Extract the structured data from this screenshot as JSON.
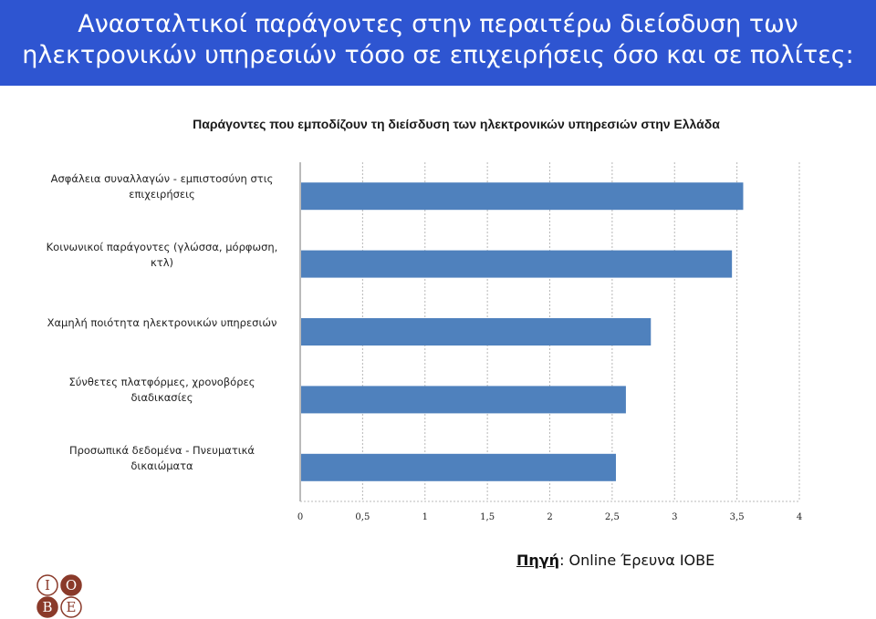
{
  "header": {
    "line1": "Ανασταλτικοί παράγοντες στην περαιτέρω διείσδυση των",
    "line2": "ηλεκτρονικών υπηρεσιών τόσο σε επιχειρήσεις όσο και σε πολίτες:"
  },
  "chart_data": {
    "type": "bar",
    "orientation": "horizontal",
    "title": "Παράγοντες που εμποδίζουν τη διείσδυση των ηλεκτρονικών υπηρεσιών στην Ελλάδα",
    "categories": [
      [
        "Ασφάλεια συναλλαγών - εμπιστοσύνη στις",
        "επιχειρήσεις"
      ],
      [
        "Κοινωνικοί παράγοντες (γλώσσα, μόρφωση,",
        "κτλ)"
      ],
      [
        "Χαμηλή ποιότητα ηλεκτρονικών υπηρεσιών"
      ],
      [
        "Σύνθετες πλατφόρμες, χρονοβόρες",
        "διαδικασίες"
      ],
      [
        "Προσωπικά δεδομένα - Πνευματικά",
        "δικαιώματα"
      ]
    ],
    "values": [
      3.55,
      3.46,
      2.81,
      2.61,
      2.53
    ],
    "xlim": [
      0,
      4
    ],
    "xticks": [
      "0",
      "0,5",
      "1",
      "1,5",
      "2",
      "2,5",
      "3",
      "3,5",
      "4"
    ],
    "grid": true,
    "bar_color": "#4f81bd"
  },
  "source": {
    "label": "Πηγή",
    "text": ": Online  Έρευνα ΙΟΒΕ"
  },
  "logo": {
    "letters": [
      "Ι",
      "Ο",
      "Β",
      "Ε"
    ],
    "color": "#8a3a2a"
  }
}
